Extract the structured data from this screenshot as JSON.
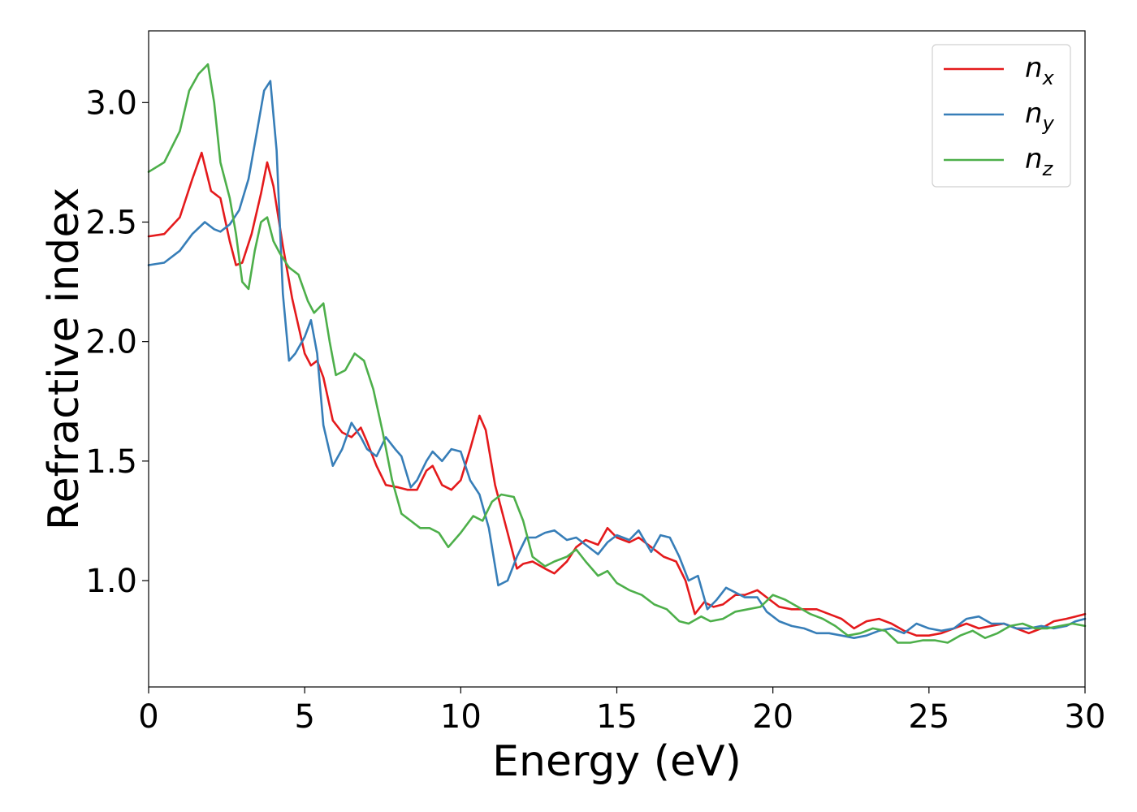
{
  "chart_data": {
    "type": "line",
    "xlabel": "Energy (eV)",
    "ylabel": "Refractive index",
    "xlim": [
      0,
      30
    ],
    "ylim": [
      0.555,
      3.3
    ],
    "xticks": [
      0,
      5,
      10,
      15,
      20,
      25,
      30
    ],
    "xtick_labels": [
      "0",
      "5",
      "10",
      "15",
      "20",
      "25",
      "30"
    ],
    "yticks": [
      1.0,
      1.5,
      2.0,
      2.5,
      3.0
    ],
    "ytick_labels": [
      "1.0",
      "1.5",
      "2.0",
      "2.5",
      "3.0"
    ],
    "grid": false,
    "legend": "top-right",
    "series": [
      {
        "name_main": "n",
        "name_sub": "x",
        "color": "#e41a1c",
        "x": [
          0,
          0.5,
          1.0,
          1.4,
          1.7,
          2.0,
          2.3,
          2.6,
          2.8,
          3.0,
          3.3,
          3.6,
          3.8,
          4.0,
          4.3,
          4.6,
          5.0,
          5.2,
          5.4,
          5.6,
          5.9,
          6.2,
          6.5,
          6.8,
          7.0,
          7.3,
          7.6,
          8.0,
          8.3,
          8.6,
          8.9,
          9.1,
          9.4,
          9.7,
          10.0,
          10.3,
          10.6,
          10.8,
          11.1,
          11.5,
          11.8,
          12.0,
          12.3,
          12.7,
          13.0,
          13.4,
          13.7,
          14.0,
          14.4,
          14.7,
          15.0,
          15.4,
          15.7,
          16.1,
          16.5,
          16.9,
          17.2,
          17.5,
          17.8,
          18.1,
          18.4,
          18.8,
          19.1,
          19.5,
          19.8,
          20.2,
          20.6,
          21.0,
          21.4,
          21.8,
          22.2,
          22.6,
          23.0,
          23.4,
          23.8,
          24.2,
          24.6,
          25.0,
          25.4,
          25.8,
          26.2,
          26.6,
          27.0,
          27.4,
          27.8,
          28.2,
          28.6,
          29.0,
          29.4,
          29.7,
          30.0
        ],
        "y": [
          2.44,
          2.45,
          2.52,
          2.68,
          2.79,
          2.63,
          2.6,
          2.42,
          2.32,
          2.33,
          2.45,
          2.62,
          2.75,
          2.65,
          2.4,
          2.18,
          1.95,
          1.9,
          1.92,
          1.85,
          1.67,
          1.62,
          1.6,
          1.64,
          1.58,
          1.48,
          1.4,
          1.39,
          1.38,
          1.38,
          1.46,
          1.48,
          1.4,
          1.38,
          1.42,
          1.55,
          1.69,
          1.63,
          1.4,
          1.2,
          1.05,
          1.07,
          1.08,
          1.05,
          1.03,
          1.08,
          1.14,
          1.17,
          1.15,
          1.22,
          1.18,
          1.16,
          1.18,
          1.14,
          1.1,
          1.08,
          1.0,
          0.86,
          0.91,
          0.89,
          0.9,
          0.94,
          0.94,
          0.96,
          0.93,
          0.89,
          0.88,
          0.88,
          0.88,
          0.86,
          0.84,
          0.8,
          0.83,
          0.84,
          0.82,
          0.79,
          0.77,
          0.77,
          0.78,
          0.8,
          0.82,
          0.8,
          0.81,
          0.82,
          0.8,
          0.78,
          0.8,
          0.83,
          0.84,
          0.85,
          0.86
        ]
      },
      {
        "name_main": "n",
        "name_sub": "y",
        "color": "#377eb8",
        "x": [
          0,
          0.5,
          1.0,
          1.4,
          1.8,
          2.1,
          2.3,
          2.6,
          2.9,
          3.2,
          3.5,
          3.7,
          3.9,
          4.1,
          4.3,
          4.5,
          4.7,
          5.0,
          5.2,
          5.4,
          5.6,
          5.9,
          6.2,
          6.5,
          6.8,
          7.0,
          7.3,
          7.6,
          7.9,
          8.1,
          8.4,
          8.6,
          8.9,
          9.1,
          9.4,
          9.7,
          10.0,
          10.3,
          10.6,
          10.9,
          11.2,
          11.5,
          11.8,
          12.1,
          12.4,
          12.7,
          13.0,
          13.4,
          13.7,
          14.0,
          14.4,
          14.7,
          15.0,
          15.4,
          15.7,
          16.1,
          16.4,
          16.7,
          17.0,
          17.3,
          17.6,
          17.9,
          18.2,
          18.5,
          18.8,
          19.1,
          19.5,
          19.8,
          20.2,
          20.6,
          21.0,
          21.4,
          21.8,
          22.2,
          22.6,
          23.0,
          23.4,
          23.8,
          24.2,
          24.6,
          25.0,
          25.4,
          25.8,
          26.2,
          26.6,
          27.0,
          27.4,
          27.8,
          28.2,
          28.6,
          29.0,
          29.4,
          29.7,
          30.0
        ],
        "y": [
          2.32,
          2.33,
          2.38,
          2.45,
          2.5,
          2.47,
          2.46,
          2.49,
          2.55,
          2.68,
          2.9,
          3.05,
          3.09,
          2.8,
          2.2,
          1.92,
          1.95,
          2.02,
          2.09,
          1.95,
          1.65,
          1.48,
          1.55,
          1.66,
          1.6,
          1.55,
          1.52,
          1.6,
          1.55,
          1.52,
          1.39,
          1.42,
          1.5,
          1.54,
          1.5,
          1.55,
          1.54,
          1.42,
          1.36,
          1.22,
          0.98,
          1.0,
          1.1,
          1.18,
          1.18,
          1.2,
          1.21,
          1.17,
          1.18,
          1.15,
          1.11,
          1.16,
          1.19,
          1.17,
          1.21,
          1.12,
          1.19,
          1.18,
          1.1,
          1.0,
          1.02,
          0.88,
          0.92,
          0.97,
          0.95,
          0.93,
          0.93,
          0.87,
          0.83,
          0.81,
          0.8,
          0.78,
          0.78,
          0.77,
          0.76,
          0.77,
          0.79,
          0.8,
          0.78,
          0.82,
          0.8,
          0.79,
          0.8,
          0.84,
          0.85,
          0.82,
          0.82,
          0.8,
          0.8,
          0.81,
          0.8,
          0.81,
          0.83,
          0.84
        ]
      },
      {
        "name_main": "n",
        "name_sub": "z",
        "color": "#4daf4a",
        "x": [
          0,
          0.5,
          1.0,
          1.3,
          1.6,
          1.9,
          2.1,
          2.3,
          2.6,
          2.8,
          3.0,
          3.2,
          3.4,
          3.6,
          3.8,
          4.0,
          4.2,
          4.5,
          4.8,
          5.1,
          5.3,
          5.6,
          5.8,
          6.0,
          6.3,
          6.6,
          6.9,
          7.2,
          7.5,
          7.8,
          8.1,
          8.4,
          8.7,
          9.0,
          9.3,
          9.6,
          10.0,
          10.4,
          10.7,
          11.0,
          11.3,
          11.7,
          12.0,
          12.3,
          12.7,
          13.0,
          13.4,
          13.7,
          14.0,
          14.4,
          14.7,
          15.0,
          15.4,
          15.8,
          16.2,
          16.6,
          17.0,
          17.3,
          17.7,
          18.0,
          18.4,
          18.8,
          19.2,
          19.6,
          20.0,
          20.4,
          20.8,
          21.2,
          21.6,
          22.0,
          22.4,
          22.8,
          23.2,
          23.6,
          24.0,
          24.4,
          24.8,
          25.2,
          25.6,
          26.0,
          26.4,
          26.8,
          27.2,
          27.6,
          28.0,
          28.4,
          28.8,
          29.2,
          29.6,
          30.0
        ],
        "y": [
          2.71,
          2.75,
          2.88,
          3.05,
          3.12,
          3.16,
          3.0,
          2.75,
          2.6,
          2.45,
          2.25,
          2.22,
          2.38,
          2.5,
          2.52,
          2.42,
          2.37,
          2.31,
          2.28,
          2.17,
          2.12,
          2.16,
          2.0,
          1.86,
          1.88,
          1.95,
          1.92,
          1.8,
          1.62,
          1.42,
          1.28,
          1.25,
          1.22,
          1.22,
          1.2,
          1.14,
          1.2,
          1.27,
          1.25,
          1.33,
          1.36,
          1.35,
          1.25,
          1.1,
          1.06,
          1.08,
          1.1,
          1.13,
          1.08,
          1.02,
          1.04,
          0.99,
          0.96,
          0.94,
          0.9,
          0.88,
          0.83,
          0.82,
          0.85,
          0.83,
          0.84,
          0.87,
          0.88,
          0.89,
          0.94,
          0.92,
          0.89,
          0.86,
          0.84,
          0.81,
          0.77,
          0.78,
          0.8,
          0.79,
          0.74,
          0.74,
          0.75,
          0.75,
          0.74,
          0.77,
          0.79,
          0.76,
          0.78,
          0.81,
          0.82,
          0.8,
          0.8,
          0.81,
          0.82,
          0.81
        ]
      }
    ]
  }
}
